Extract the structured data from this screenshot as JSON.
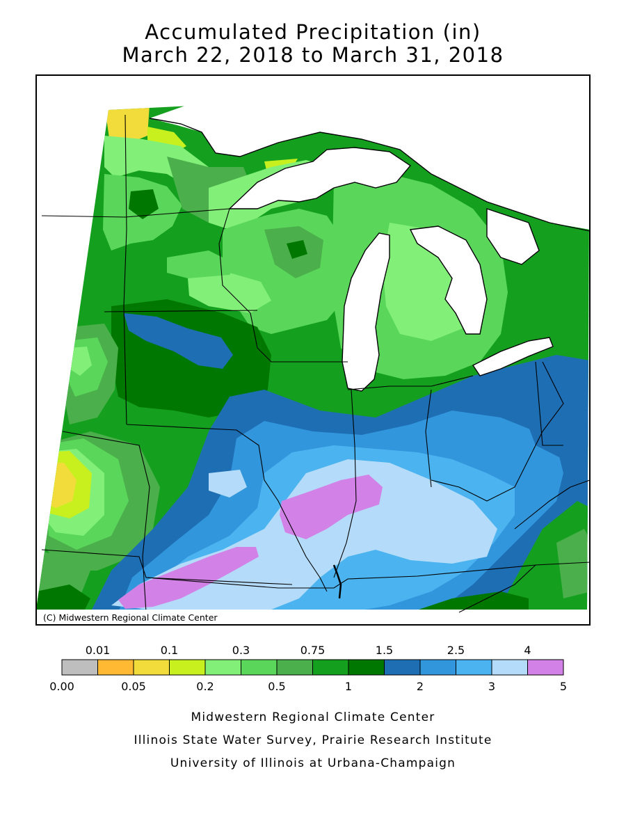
{
  "title": {
    "line1": "Accumulated Precipitation (in)",
    "line2": "March 22, 2018 to March 31, 2018"
  },
  "map": {
    "copyright": "(C) Midwestern Regional Climate Center"
  },
  "legend": {
    "top_labels": [
      "0.01",
      "0.1",
      "0.3",
      "0.75",
      "1.5",
      "2.5",
      "4"
    ],
    "bottom_labels": [
      "0.00",
      "0.05",
      "0.2",
      "0.5",
      "1",
      "2",
      "3",
      "5"
    ],
    "colors": [
      "#bebebe",
      "#ffb932",
      "#f2dc3c",
      "#c8f01e",
      "#82f078",
      "#5ad75a",
      "#4bb04b",
      "#14a01e",
      "#007800",
      "#1e6eb4",
      "#3296dc",
      "#4bb4f0",
      "#b4dcfa",
      "#d282e6"
    ]
  },
  "footer": {
    "line1": "Midwestern Regional Climate Center",
    "line2": "Illinois State Water Survey, Prairie Research Institute",
    "line3": "University of Illinois at Urbana-Champaign"
  }
}
